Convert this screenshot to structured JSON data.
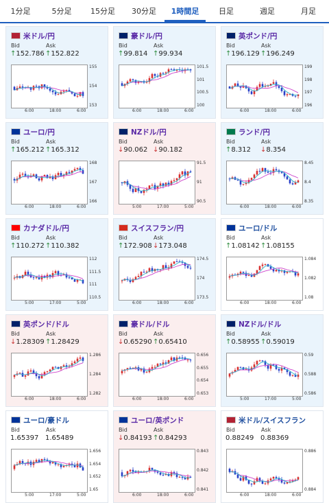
{
  "tabs": [
    {
      "label": "1分足"
    },
    {
      "label": "5分足"
    },
    {
      "label": "15分足"
    },
    {
      "label": "30分足"
    },
    {
      "label": "1時間足",
      "active": true
    },
    {
      "label": "日足"
    },
    {
      "label": "週足"
    },
    {
      "label": "月足"
    }
  ],
  "cards": [
    {
      "title": "米ドル/円",
      "flag": "us-jp-flag",
      "tone": "up",
      "bid_label": "Bid",
      "ask_label": "Ask",
      "bid": "152.786",
      "ask": "152.822",
      "bid_dir": "up",
      "ask_dir": "up",
      "yticks": [
        "155",
        "154",
        "153"
      ],
      "xticks": [
        "6:00",
        "18:00",
        "6:00"
      ]
    },
    {
      "title": "豪ドル/円",
      "flag": "au-jp-flag",
      "tone": "up",
      "bid_label": "Bid",
      "ask_label": "Ask",
      "bid": "99.814",
      "ask": "99.934",
      "bid_dir": "up",
      "ask_dir": "up",
      "yticks": [
        "101.5",
        "101",
        "100.5",
        "100"
      ],
      "xticks": [
        "6:00",
        "18:00",
        "6:00"
      ]
    },
    {
      "title": "英ポンド/円",
      "flag": "gb-jp-flag",
      "tone": "up",
      "bid_label": "Bid",
      "ask_label": "Ask",
      "bid": "196.129",
      "ask": "196.249",
      "bid_dir": "up",
      "ask_dir": "up",
      "yticks": [
        "199",
        "198",
        "197",
        "196"
      ],
      "xticks": [
        "6:00",
        "18:00",
        "6:00"
      ]
    },
    {
      "title": "ユーロ/円",
      "flag": "eu-jp-flag",
      "tone": "up",
      "bid_label": "Bid",
      "ask_label": "Ask",
      "bid": "165.212",
      "ask": "165.312",
      "bid_dir": "up",
      "ask_dir": "up",
      "yticks": [
        "168",
        "167",
        "166"
      ],
      "xticks": [
        "6:00",
        "18:00",
        "6:00"
      ]
    },
    {
      "title": "NZドル/円",
      "flag": "nz-jp-flag",
      "tone": "down",
      "bid_label": "Bid",
      "ask_label": "Ask",
      "bid": "90.062",
      "ask": "90.182",
      "bid_dir": "down",
      "ask_dir": "down",
      "yticks": [
        "91.5",
        "91",
        "90.5"
      ],
      "xticks": [
        "5:00",
        "17:00",
        "5:00"
      ]
    },
    {
      "title": "ランド/円",
      "flag": "za-jp-flag",
      "tone": "up",
      "bid_label": "Bid",
      "ask_label": "Ask",
      "bid": "8.312",
      "ask": "8.354",
      "bid_dir": "up",
      "ask_dir": "down",
      "yticks": [
        "8.45",
        "8.4",
        "8.35"
      ],
      "xticks": [
        "6:00",
        "18:00",
        "6:00"
      ]
    },
    {
      "title": "カナダドル/円",
      "flag": "ca-jp-flag",
      "tone": "up",
      "bid_label": "Bid",
      "ask_label": "Ask",
      "bid": "110.272",
      "ask": "110.382",
      "bid_dir": "up",
      "ask_dir": "up",
      "yticks": [
        "112",
        "111.5",
        "111",
        "110.5"
      ],
      "xticks": [
        "5:00",
        "17:00",
        "5:00"
      ]
    },
    {
      "title": "スイスフラン/円",
      "flag": "ch-jp-flag",
      "tone": "up",
      "bid_label": "Bid",
      "ask_label": "Ask",
      "bid": "172.908",
      "ask": "173.048",
      "bid_dir": "up",
      "ask_dir": "down",
      "yticks": [
        "174.5",
        "174",
        "173.5"
      ],
      "xticks": [
        "6:00",
        "18:00",
        "6:00"
      ]
    },
    {
      "title": "ユーロ/ドル",
      "flag": "eu-us-flag",
      "tone": "flat",
      "bid_label": "Bid",
      "ask_label": "Ask",
      "bid": "1.08142",
      "ask": "1.08155",
      "bid_dir": "up",
      "ask_dir": "up",
      "yticks": [
        "1.084",
        "1.082",
        "1.08"
      ],
      "xticks": [
        "6:00",
        "18:00",
        "6:00"
      ]
    },
    {
      "title": "英ポンド/ドル",
      "flag": "gb-us-flag",
      "tone": "down",
      "bid_label": "Bid",
      "ask_label": "Ask",
      "bid": "1.28309",
      "ask": "1.28429",
      "bid_dir": "down",
      "ask_dir": "up",
      "yticks": [
        "1.286",
        "1.284",
        "1.282"
      ],
      "xticks": [
        "6:00",
        "18:00",
        "6:00"
      ]
    },
    {
      "title": "豪ドル/ドル",
      "flag": "au-us-flag",
      "tone": "down",
      "bid_label": "Bid",
      "ask_label": "Ask",
      "bid": "0.65290",
      "ask": "0.65410",
      "bid_dir": "down",
      "ask_dir": "up",
      "yticks": [
        "0.656",
        "0.655",
        "0.654",
        "0.653"
      ],
      "xticks": [
        "6:00",
        "18:00",
        "6:00"
      ]
    },
    {
      "title": "NZドル/ドル",
      "flag": "nz-us-flag",
      "tone": "up",
      "bid_label": "Bid",
      "ask_label": "Ask",
      "bid": "0.58955",
      "ask": "0.59019",
      "bid_dir": "up",
      "ask_dir": "up",
      "yticks": [
        "0.59",
        "0.588",
        "0.586"
      ],
      "xticks": [
        "5:00",
        "17:00",
        "5:00"
      ]
    },
    {
      "title": "ユーロ/豪ドル",
      "flag": "eu-au-flag",
      "tone": "flat",
      "bid_label": "Bid",
      "ask_label": "Ask",
      "bid": "1.65397",
      "ask": "1.65489",
      "bid_dir": "none",
      "ask_dir": "none",
      "yticks": [
        "1.656",
        "1.654",
        "1.652",
        "1.65"
      ],
      "xticks": [
        "5:00",
        "17:00",
        "5:00"
      ]
    },
    {
      "title": "ユーロ/英ポンド",
      "flag": "eu-gb-flag",
      "tone": "down",
      "bid_label": "Bid",
      "ask_label": "Ask",
      "bid": "0.84193",
      "ask": "0.84293",
      "bid_dir": "down",
      "ask_dir": "up",
      "yticks": [
        "0.843",
        "0.842",
        "0.841"
      ],
      "xticks": [
        "6:00",
        "18:00",
        "6:00"
      ]
    },
    {
      "title": "米ドル/スイスフラン",
      "flag": "us-ch-flag",
      "tone": "flat",
      "bid_label": "Bid",
      "ask_label": "Ask",
      "bid": "0.88249",
      "ask": "0.88369",
      "bid_dir": "none",
      "ask_dir": "none",
      "yticks": [
        "0.886",
        "0.884"
      ],
      "xticks": [
        "6:00",
        "18:00",
        "6:00"
      ]
    }
  ],
  "colors": {
    "up_arrow": "#2a8a3a",
    "down_arrow": "#c83030",
    "candle_up": "#d83030",
    "candle_down": "#2a40c8",
    "ma": "#cc44cc",
    "ma2": "#2bb3c8"
  }
}
